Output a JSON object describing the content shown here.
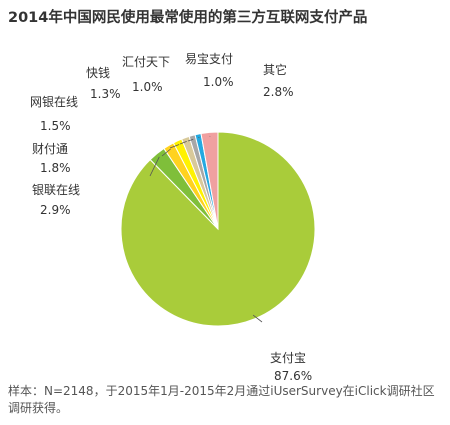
{
  "chart_data": {
    "type": "pie",
    "title": "2014年中国网民使用最常使用的第三方互联网支付产品",
    "slices": [
      {
        "name": "支付宝",
        "value": 87.6,
        "label": "87.6%",
        "color": "#a9cc3a"
      },
      {
        "name": "银联在线",
        "value": 2.9,
        "label": "2.9%",
        "color": "#7fbf3a"
      },
      {
        "name": "财付通",
        "value": 1.8,
        "label": "1.8%",
        "color": "#ffd21f"
      },
      {
        "name": "网银在线",
        "value": 1.5,
        "label": "1.5%",
        "color": "#fff200"
      },
      {
        "name": "快钱",
        "value": 1.3,
        "label": "1.3%",
        "color": "#d8c99a"
      },
      {
        "name": "汇付天下",
        "value": 1.0,
        "label": "1.0%",
        "color": "#a7a7a7"
      },
      {
        "name": "易宝支付",
        "value": 1.0,
        "label": "1.0%",
        "color": "#23a9e1"
      },
      {
        "name": "其它",
        "value": 2.8,
        "label": "2.8%",
        "color": "#f0a0a0"
      }
    ]
  },
  "footnote": "样本：N=2148，于2015年1月-2015年2月通过iUserSurvey在iClick调研社区调研获得。"
}
